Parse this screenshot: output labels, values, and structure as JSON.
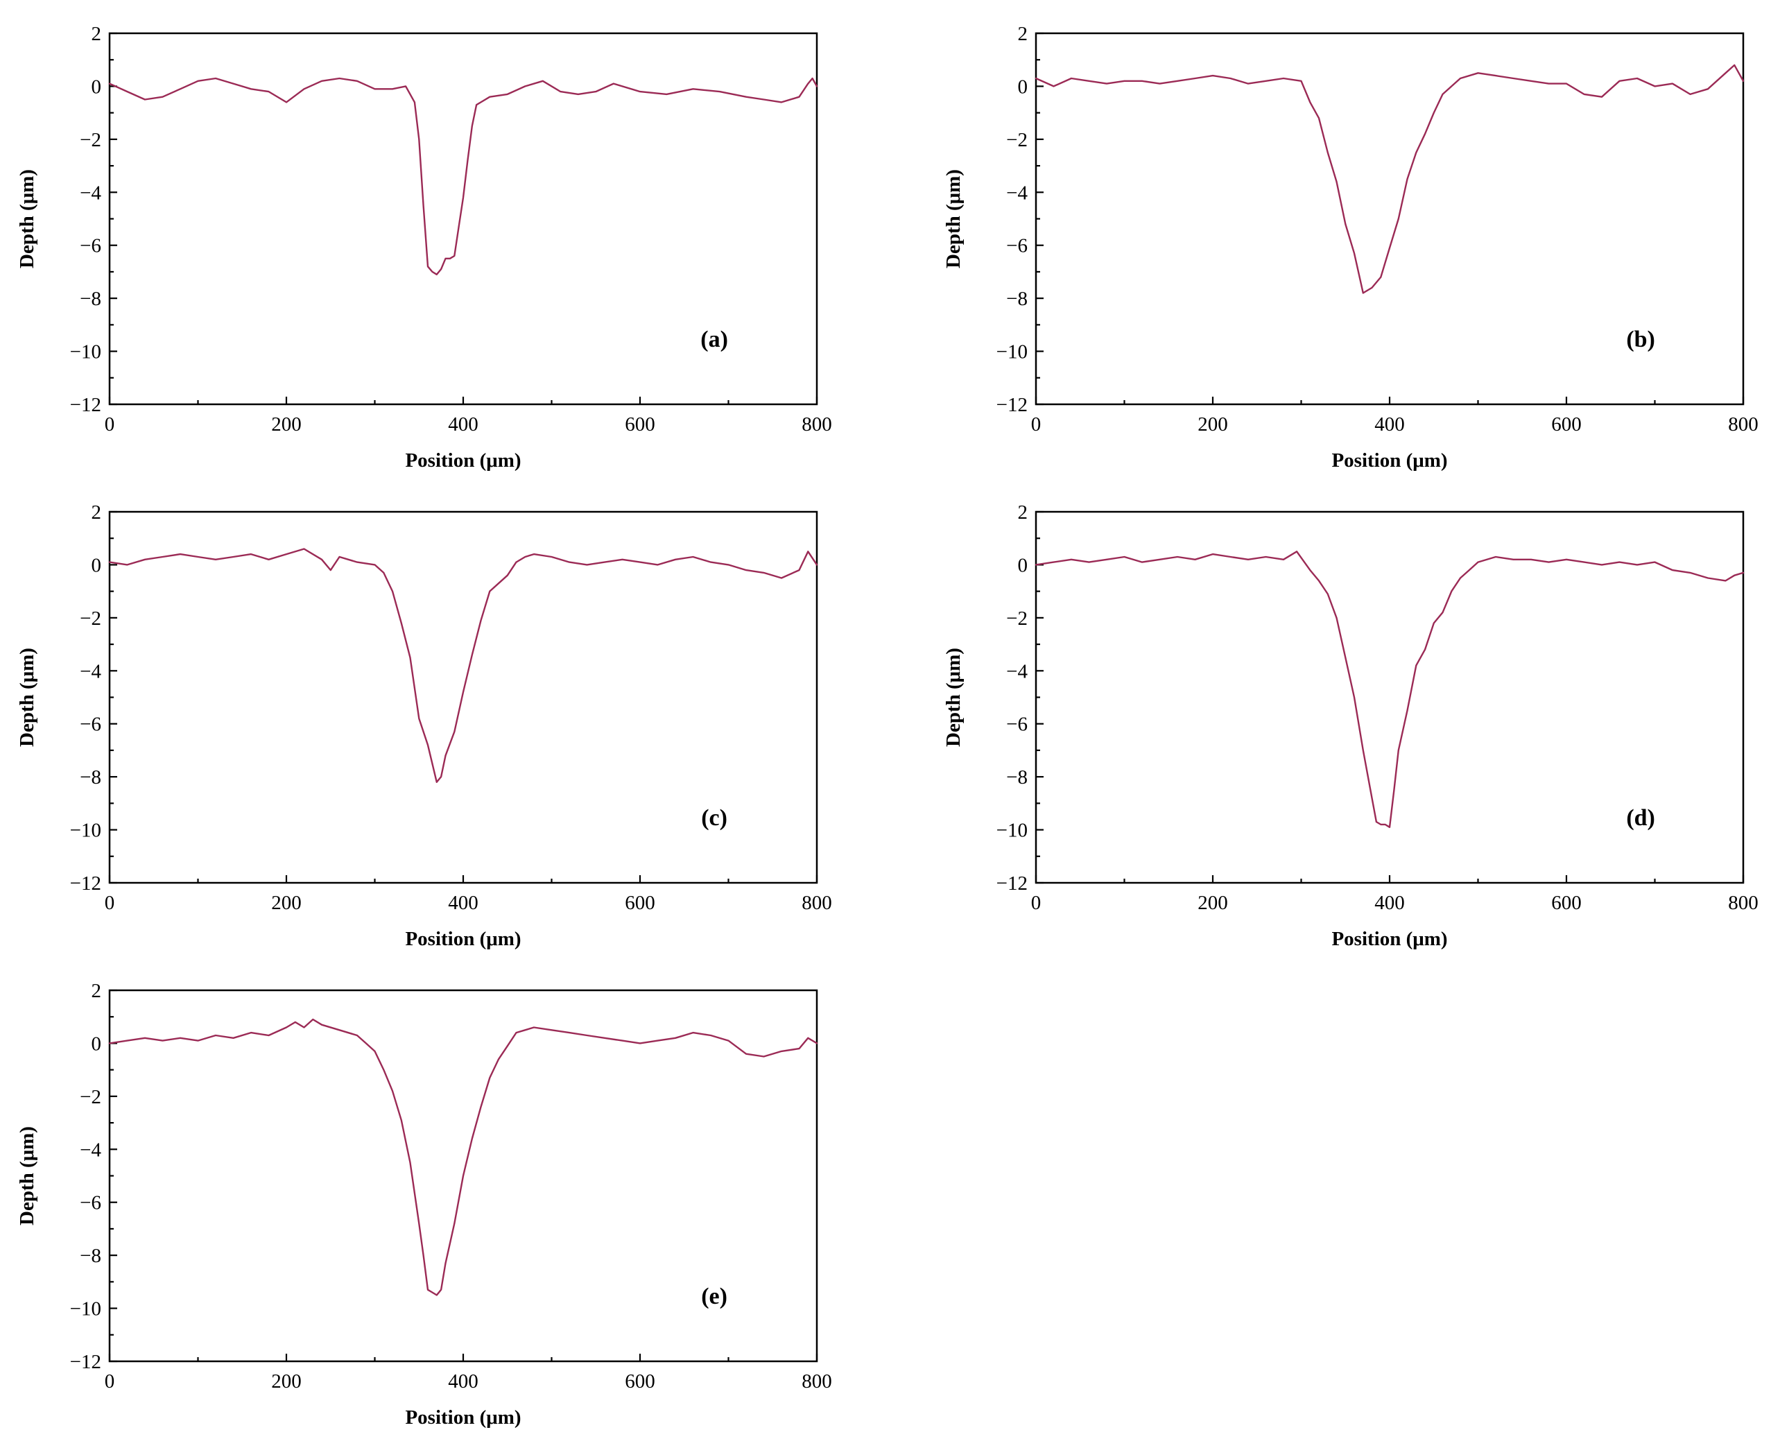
{
  "figure": {
    "line_color": "#9b2a55"
  },
  "chart_data": [
    {
      "type": "line",
      "panel_label": "(a)",
      "xlabel": "Position (μm)",
      "ylabel": "Depth (μm)",
      "xlim": [
        0,
        800
      ],
      "ylim": [
        -12,
        2
      ],
      "x_ticks": [
        "0",
        "200",
        "400",
        "600",
        "800"
      ],
      "y_ticks": [
        "2",
        "0",
        "−2",
        "−4",
        "−6",
        "−8",
        "−10",
        "−12"
      ],
      "grid": false,
      "label_position": "bottom-right",
      "x": [
        0,
        20,
        40,
        60,
        80,
        100,
        120,
        140,
        160,
        180,
        200,
        220,
        240,
        260,
        280,
        300,
        320,
        335,
        345,
        350,
        355,
        360,
        365,
        370,
        375,
        380,
        385,
        390,
        395,
        400,
        405,
        410,
        415,
        420,
        430,
        450,
        470,
        490,
        510,
        530,
        550,
        570,
        600,
        630,
        660,
        690,
        720,
        740,
        760,
        780,
        790,
        795,
        800
      ],
      "values": [
        0.1,
        -0.2,
        -0.5,
        -0.4,
        -0.1,
        0.2,
        0.3,
        0.1,
        -0.1,
        -0.2,
        -0.6,
        -0.1,
        0.2,
        0.3,
        0.2,
        -0.1,
        -0.1,
        0.0,
        -0.6,
        -2.0,
        -4.5,
        -6.8,
        -7.0,
        -7.1,
        -6.9,
        -6.5,
        -6.5,
        -6.4,
        -5.3,
        -4.2,
        -2.8,
        -1.5,
        -0.7,
        -0.6,
        -0.4,
        -0.3,
        0.0,
        0.2,
        -0.2,
        -0.3,
        -0.2,
        0.1,
        -0.2,
        -0.3,
        -0.1,
        -0.2,
        -0.4,
        -0.5,
        -0.6,
        -0.4,
        0.1,
        0.3,
        0.0
      ]
    },
    {
      "type": "line",
      "panel_label": "(b)",
      "xlabel": "Position (μm)",
      "ylabel": "Depth (μm)",
      "xlim": [
        0,
        800
      ],
      "ylim": [
        -12,
        2
      ],
      "x_ticks": [
        "0",
        "200",
        "400",
        "600",
        "800"
      ],
      "y_ticks": [
        "2",
        "0",
        "−2",
        "−4",
        "−6",
        "−8",
        "−10",
        "−12"
      ],
      "grid": false,
      "label_position": "bottom-right",
      "x": [
        0,
        20,
        40,
        60,
        80,
        100,
        120,
        140,
        160,
        180,
        200,
        220,
        240,
        260,
        280,
        300,
        310,
        320,
        330,
        340,
        350,
        360,
        370,
        380,
        390,
        400,
        410,
        420,
        430,
        440,
        450,
        460,
        470,
        480,
        500,
        520,
        540,
        560,
        580,
        600,
        620,
        640,
        660,
        680,
        700,
        720,
        740,
        760,
        780,
        790,
        800
      ],
      "values": [
        0.3,
        0.0,
        0.3,
        0.2,
        0.1,
        0.2,
        0.2,
        0.1,
        0.2,
        0.3,
        0.4,
        0.3,
        0.1,
        0.2,
        0.3,
        0.2,
        -0.6,
        -1.2,
        -2.5,
        -3.6,
        -5.2,
        -6.3,
        -7.8,
        -7.6,
        -7.2,
        -6.1,
        -5.0,
        -3.5,
        -2.5,
        -1.8,
        -1.0,
        -0.3,
        0.0,
        0.3,
        0.5,
        0.4,
        0.3,
        0.2,
        0.1,
        0.1,
        -0.3,
        -0.4,
        0.2,
        0.3,
        0.0,
        0.1,
        -0.3,
        -0.1,
        0.5,
        0.8,
        0.2
      ]
    },
    {
      "type": "line",
      "panel_label": "(c)",
      "xlabel": "Position (μm)",
      "ylabel": "Depth (μm)",
      "xlim": [
        0,
        800
      ],
      "ylim": [
        -12,
        2
      ],
      "x_ticks": [
        "0",
        "200",
        "400",
        "600",
        "800"
      ],
      "y_ticks": [
        "2",
        "0",
        "−2",
        "−4",
        "−6",
        "−8",
        "−10",
        "−12"
      ],
      "grid": false,
      "label_position": "bottom-right",
      "x": [
        0,
        20,
        40,
        60,
        80,
        100,
        120,
        140,
        160,
        180,
        200,
        220,
        240,
        250,
        260,
        280,
        300,
        310,
        320,
        330,
        340,
        350,
        360,
        370,
        375,
        380,
        390,
        400,
        410,
        420,
        430,
        440,
        450,
        460,
        470,
        480,
        500,
        520,
        540,
        560,
        580,
        600,
        620,
        640,
        660,
        680,
        700,
        720,
        740,
        760,
        780,
        790,
        800
      ],
      "values": [
        0.1,
        0.0,
        0.2,
        0.3,
        0.4,
        0.3,
        0.2,
        0.3,
        0.4,
        0.2,
        0.4,
        0.6,
        0.2,
        -0.2,
        0.3,
        0.1,
        0.0,
        -0.3,
        -1.0,
        -2.2,
        -3.5,
        -5.8,
        -6.8,
        -8.2,
        -8.0,
        -7.2,
        -6.3,
        -4.8,
        -3.4,
        -2.1,
        -1.0,
        -0.7,
        -0.4,
        0.1,
        0.3,
        0.4,
        0.3,
        0.1,
        0.0,
        0.1,
        0.2,
        0.1,
        0.0,
        0.2,
        0.3,
        0.1,
        0.0,
        -0.2,
        -0.3,
        -0.5,
        -0.2,
        0.5,
        0.0
      ]
    },
    {
      "type": "line",
      "panel_label": "(d)",
      "xlabel": "Position (μm)",
      "ylabel": "Depth (μm)",
      "xlim": [
        0,
        800
      ],
      "ylim": [
        -12,
        2
      ],
      "x_ticks": [
        "0",
        "200",
        "400",
        "600",
        "800"
      ],
      "y_ticks": [
        "2",
        "0",
        "−2",
        "−4",
        "−6",
        "−8",
        "−10",
        "−12"
      ],
      "grid": false,
      "label_position": "bottom-right",
      "x": [
        0,
        20,
        40,
        60,
        80,
        100,
        120,
        140,
        160,
        180,
        200,
        220,
        240,
        260,
        280,
        295,
        310,
        320,
        330,
        340,
        350,
        360,
        370,
        380,
        385,
        390,
        395,
        400,
        405,
        410,
        420,
        430,
        440,
        450,
        460,
        470,
        480,
        490,
        500,
        520,
        540,
        560,
        580,
        600,
        620,
        640,
        660,
        680,
        700,
        720,
        740,
        760,
        780,
        790,
        800
      ],
      "values": [
        0.0,
        0.1,
        0.2,
        0.1,
        0.2,
        0.3,
        0.1,
        0.2,
        0.3,
        0.2,
        0.4,
        0.3,
        0.2,
        0.3,
        0.2,
        0.5,
        -0.2,
        -0.6,
        -1.1,
        -2.0,
        -3.5,
        -5.0,
        -7.0,
        -8.8,
        -9.7,
        -9.8,
        -9.8,
        -9.9,
        -8.5,
        -7.0,
        -5.5,
        -3.8,
        -3.2,
        -2.2,
        -1.8,
        -1.0,
        -0.5,
        -0.2,
        0.1,
        0.3,
        0.2,
        0.2,
        0.1,
        0.2,
        0.1,
        0.0,
        0.1,
        0.0,
        0.1,
        -0.2,
        -0.3,
        -0.5,
        -0.6,
        -0.4,
        -0.3
      ]
    },
    {
      "type": "line",
      "panel_label": "(e)",
      "xlabel": "Position (μm)",
      "ylabel": "Depth (μm)",
      "xlim": [
        0,
        800
      ],
      "ylim": [
        -12,
        2
      ],
      "x_ticks": [
        "0",
        "200",
        "400",
        "600",
        "800"
      ],
      "y_ticks": [
        "2",
        "0",
        "−2",
        "−4",
        "−6",
        "−8",
        "−10",
        "−12"
      ],
      "grid": false,
      "label_position": "bottom-right",
      "x": [
        0,
        20,
        40,
        60,
        80,
        100,
        120,
        140,
        160,
        180,
        200,
        210,
        220,
        230,
        240,
        260,
        280,
        290,
        300,
        310,
        320,
        330,
        340,
        350,
        355,
        360,
        365,
        370,
        375,
        380,
        390,
        400,
        410,
        420,
        430,
        440,
        450,
        460,
        470,
        480,
        500,
        520,
        540,
        560,
        580,
        600,
        620,
        640,
        660,
        680,
        700,
        720,
        740,
        760,
        780,
        790,
        800
      ],
      "values": [
        0.0,
        0.1,
        0.2,
        0.1,
        0.2,
        0.1,
        0.3,
        0.2,
        0.4,
        0.3,
        0.6,
        0.8,
        0.6,
        0.9,
        0.7,
        0.5,
        0.3,
        0.0,
        -0.3,
        -1.0,
        -1.8,
        -2.9,
        -4.5,
        -6.8,
        -8.0,
        -9.3,
        -9.4,
        -9.5,
        -9.3,
        -8.3,
        -6.8,
        -5.0,
        -3.6,
        -2.4,
        -1.3,
        -0.6,
        -0.1,
        0.4,
        0.5,
        0.6,
        0.5,
        0.4,
        0.3,
        0.2,
        0.1,
        0.0,
        0.1,
        0.2,
        0.4,
        0.3,
        0.1,
        -0.4,
        -0.5,
        -0.3,
        -0.2,
        0.2,
        0.0
      ]
    }
  ]
}
